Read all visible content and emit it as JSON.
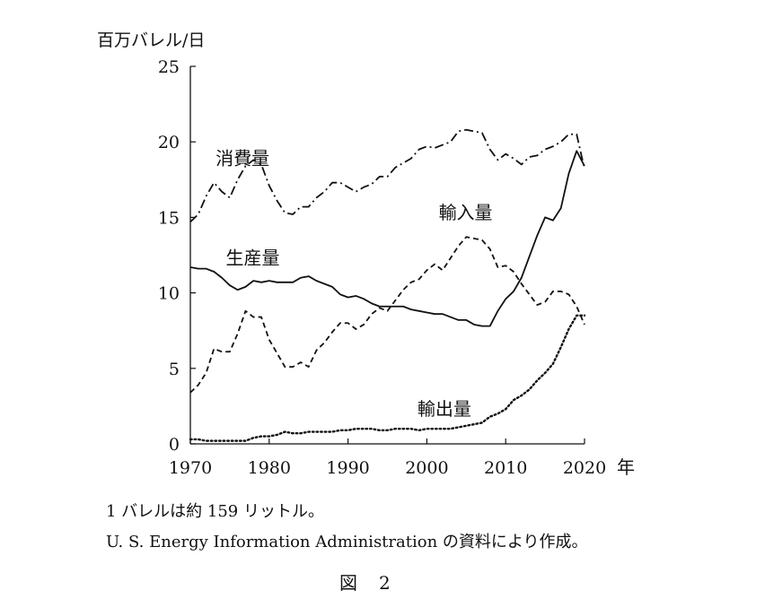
{
  "chart_data": {
    "type": "line",
    "ylabel": "百万バレル/日",
    "xlabel": "年",
    "xlim": [
      1970,
      2020
    ],
    "ylim": [
      0,
      25
    ],
    "xticks": [
      1970,
      1980,
      1990,
      2000,
      2010,
      2020
    ],
    "yticks": [
      0,
      5,
      10,
      15,
      20,
      25
    ],
    "grid": false,
    "legend": "inline labels",
    "series": [
      {
        "name": "消費量",
        "style": "dash-dot",
        "x": [
          1970,
          1971,
          1972,
          1973,
          1974,
          1975,
          1976,
          1977,
          1978,
          1979,
          1980,
          1981,
          1982,
          1983,
          1984,
          1985,
          1986,
          1987,
          1988,
          1989,
          1990,
          1991,
          1992,
          1993,
          1994,
          1995,
          1996,
          1997,
          1998,
          1999,
          2000,
          2001,
          2002,
          2003,
          2004,
          2005,
          2006,
          2007,
          2008,
          2009,
          2010,
          2011,
          2012,
          2013,
          2014,
          2015,
          2016,
          2017,
          2018,
          2019,
          2020
        ],
        "values": [
          14.7,
          15.2,
          16.4,
          17.3,
          16.7,
          16.3,
          17.5,
          18.4,
          18.8,
          18.5,
          17.1,
          16.1,
          15.3,
          15.2,
          15.7,
          15.7,
          16.3,
          16.7,
          17.3,
          17.3,
          17.0,
          16.7,
          17.0,
          17.2,
          17.7,
          17.7,
          18.3,
          18.6,
          18.9,
          19.5,
          19.7,
          19.6,
          19.8,
          20.0,
          20.7,
          20.8,
          20.7,
          20.6,
          19.5,
          18.8,
          19.2,
          18.9,
          18.5,
          19.0,
          19.1,
          19.5,
          19.7,
          20.0,
          20.5,
          20.5,
          18.2
        ]
      },
      {
        "name": "生産量",
        "style": "solid",
        "x": [
          1970,
          1971,
          1972,
          1973,
          1974,
          1975,
          1976,
          1977,
          1978,
          1979,
          1980,
          1981,
          1982,
          1983,
          1984,
          1985,
          1986,
          1987,
          1988,
          1989,
          1990,
          1991,
          1992,
          1993,
          1994,
          1995,
          1996,
          1997,
          1998,
          1999,
          2000,
          2001,
          2002,
          2003,
          2004,
          2005,
          2006,
          2007,
          2008,
          2009,
          2010,
          2011,
          2012,
          2013,
          2014,
          2015,
          2016,
          2017,
          2018,
          2019,
          2020
        ],
        "values": [
          11.7,
          11.6,
          11.6,
          11.4,
          11.0,
          10.5,
          10.2,
          10.4,
          10.8,
          10.7,
          10.8,
          10.7,
          10.7,
          10.7,
          11.0,
          11.1,
          10.8,
          10.6,
          10.4,
          9.9,
          9.7,
          9.8,
          9.6,
          9.3,
          9.1,
          9.1,
          9.1,
          9.1,
          8.9,
          8.8,
          8.7,
          8.6,
          8.6,
          8.4,
          8.2,
          8.2,
          7.9,
          7.8,
          7.8,
          8.8,
          9.6,
          10.1,
          11.0,
          12.4,
          13.8,
          15.0,
          14.8,
          15.6,
          17.9,
          19.4,
          18.4
        ]
      },
      {
        "name": "輸入量",
        "style": "dashed",
        "x": [
          1970,
          1971,
          1972,
          1973,
          1974,
          1975,
          1976,
          1977,
          1978,
          1979,
          1980,
          1981,
          1982,
          1983,
          1984,
          1985,
          1986,
          1987,
          1988,
          1989,
          1990,
          1991,
          1992,
          1993,
          1994,
          1995,
          1996,
          1997,
          1998,
          1999,
          2000,
          2001,
          2002,
          2003,
          2004,
          2005,
          2006,
          2007,
          2008,
          2009,
          2010,
          2011,
          2012,
          2013,
          2014,
          2015,
          2016,
          2017,
          2018,
          2019,
          2020
        ],
        "values": [
          3.4,
          3.9,
          4.7,
          6.3,
          6.1,
          6.1,
          7.3,
          8.8,
          8.4,
          8.4,
          6.9,
          6.0,
          5.1,
          5.1,
          5.4,
          5.1,
          6.2,
          6.7,
          7.4,
          8.0,
          8.0,
          7.6,
          7.9,
          8.6,
          9.0,
          8.8,
          9.5,
          10.2,
          10.7,
          10.9,
          11.5,
          11.9,
          11.5,
          12.3,
          13.1,
          13.7,
          13.6,
          13.5,
          12.9,
          11.7,
          11.8,
          11.4,
          10.6,
          9.9,
          9.2,
          9.4,
          10.1,
          10.1,
          9.9,
          9.1,
          7.9
        ]
      },
      {
        "name": "輸出量",
        "style": "dotted",
        "x": [
          1970,
          1971,
          1972,
          1973,
          1974,
          1975,
          1976,
          1977,
          1978,
          1979,
          1980,
          1981,
          1982,
          1983,
          1984,
          1985,
          1986,
          1987,
          1988,
          1989,
          1990,
          1991,
          1992,
          1993,
          1994,
          1995,
          1996,
          1997,
          1998,
          1999,
          2000,
          2001,
          2002,
          2003,
          2004,
          2005,
          2006,
          2007,
          2008,
          2009,
          2010,
          2011,
          2012,
          2013,
          2014,
          2015,
          2016,
          2017,
          2018,
          2019,
          2020
        ],
        "values": [
          0.3,
          0.3,
          0.2,
          0.2,
          0.2,
          0.2,
          0.2,
          0.2,
          0.4,
          0.5,
          0.5,
          0.6,
          0.8,
          0.7,
          0.7,
          0.8,
          0.8,
          0.8,
          0.8,
          0.9,
          0.9,
          1.0,
          1.0,
          1.0,
          0.9,
          0.9,
          1.0,
          1.0,
          1.0,
          0.9,
          1.0,
          1.0,
          1.0,
          1.0,
          1.1,
          1.2,
          1.3,
          1.4,
          1.8,
          2.0,
          2.3,
          2.9,
          3.2,
          3.6,
          4.2,
          4.7,
          5.3,
          6.4,
          7.6,
          8.5,
          8.5
        ]
      }
    ],
    "labels": [
      {
        "series": "消費量",
        "text": "消費量",
        "x": 1973.2,
        "y": 18.5
      },
      {
        "series": "輸入量",
        "text": "輸入量",
        "x": 2001.5,
        "y": 14.9
      },
      {
        "series": "生産量",
        "text": "生産量",
        "x": 1974.5,
        "y": 11.9
      },
      {
        "series": "輸出量",
        "text": "輸出量",
        "x": 1998.8,
        "y": 1.9
      }
    ]
  },
  "notes": {
    "line1": "1 バレルは約 159 リットル。",
    "line2": "U. S. Energy Information Administration の資料により作成。"
  },
  "figure_label": "図　2"
}
